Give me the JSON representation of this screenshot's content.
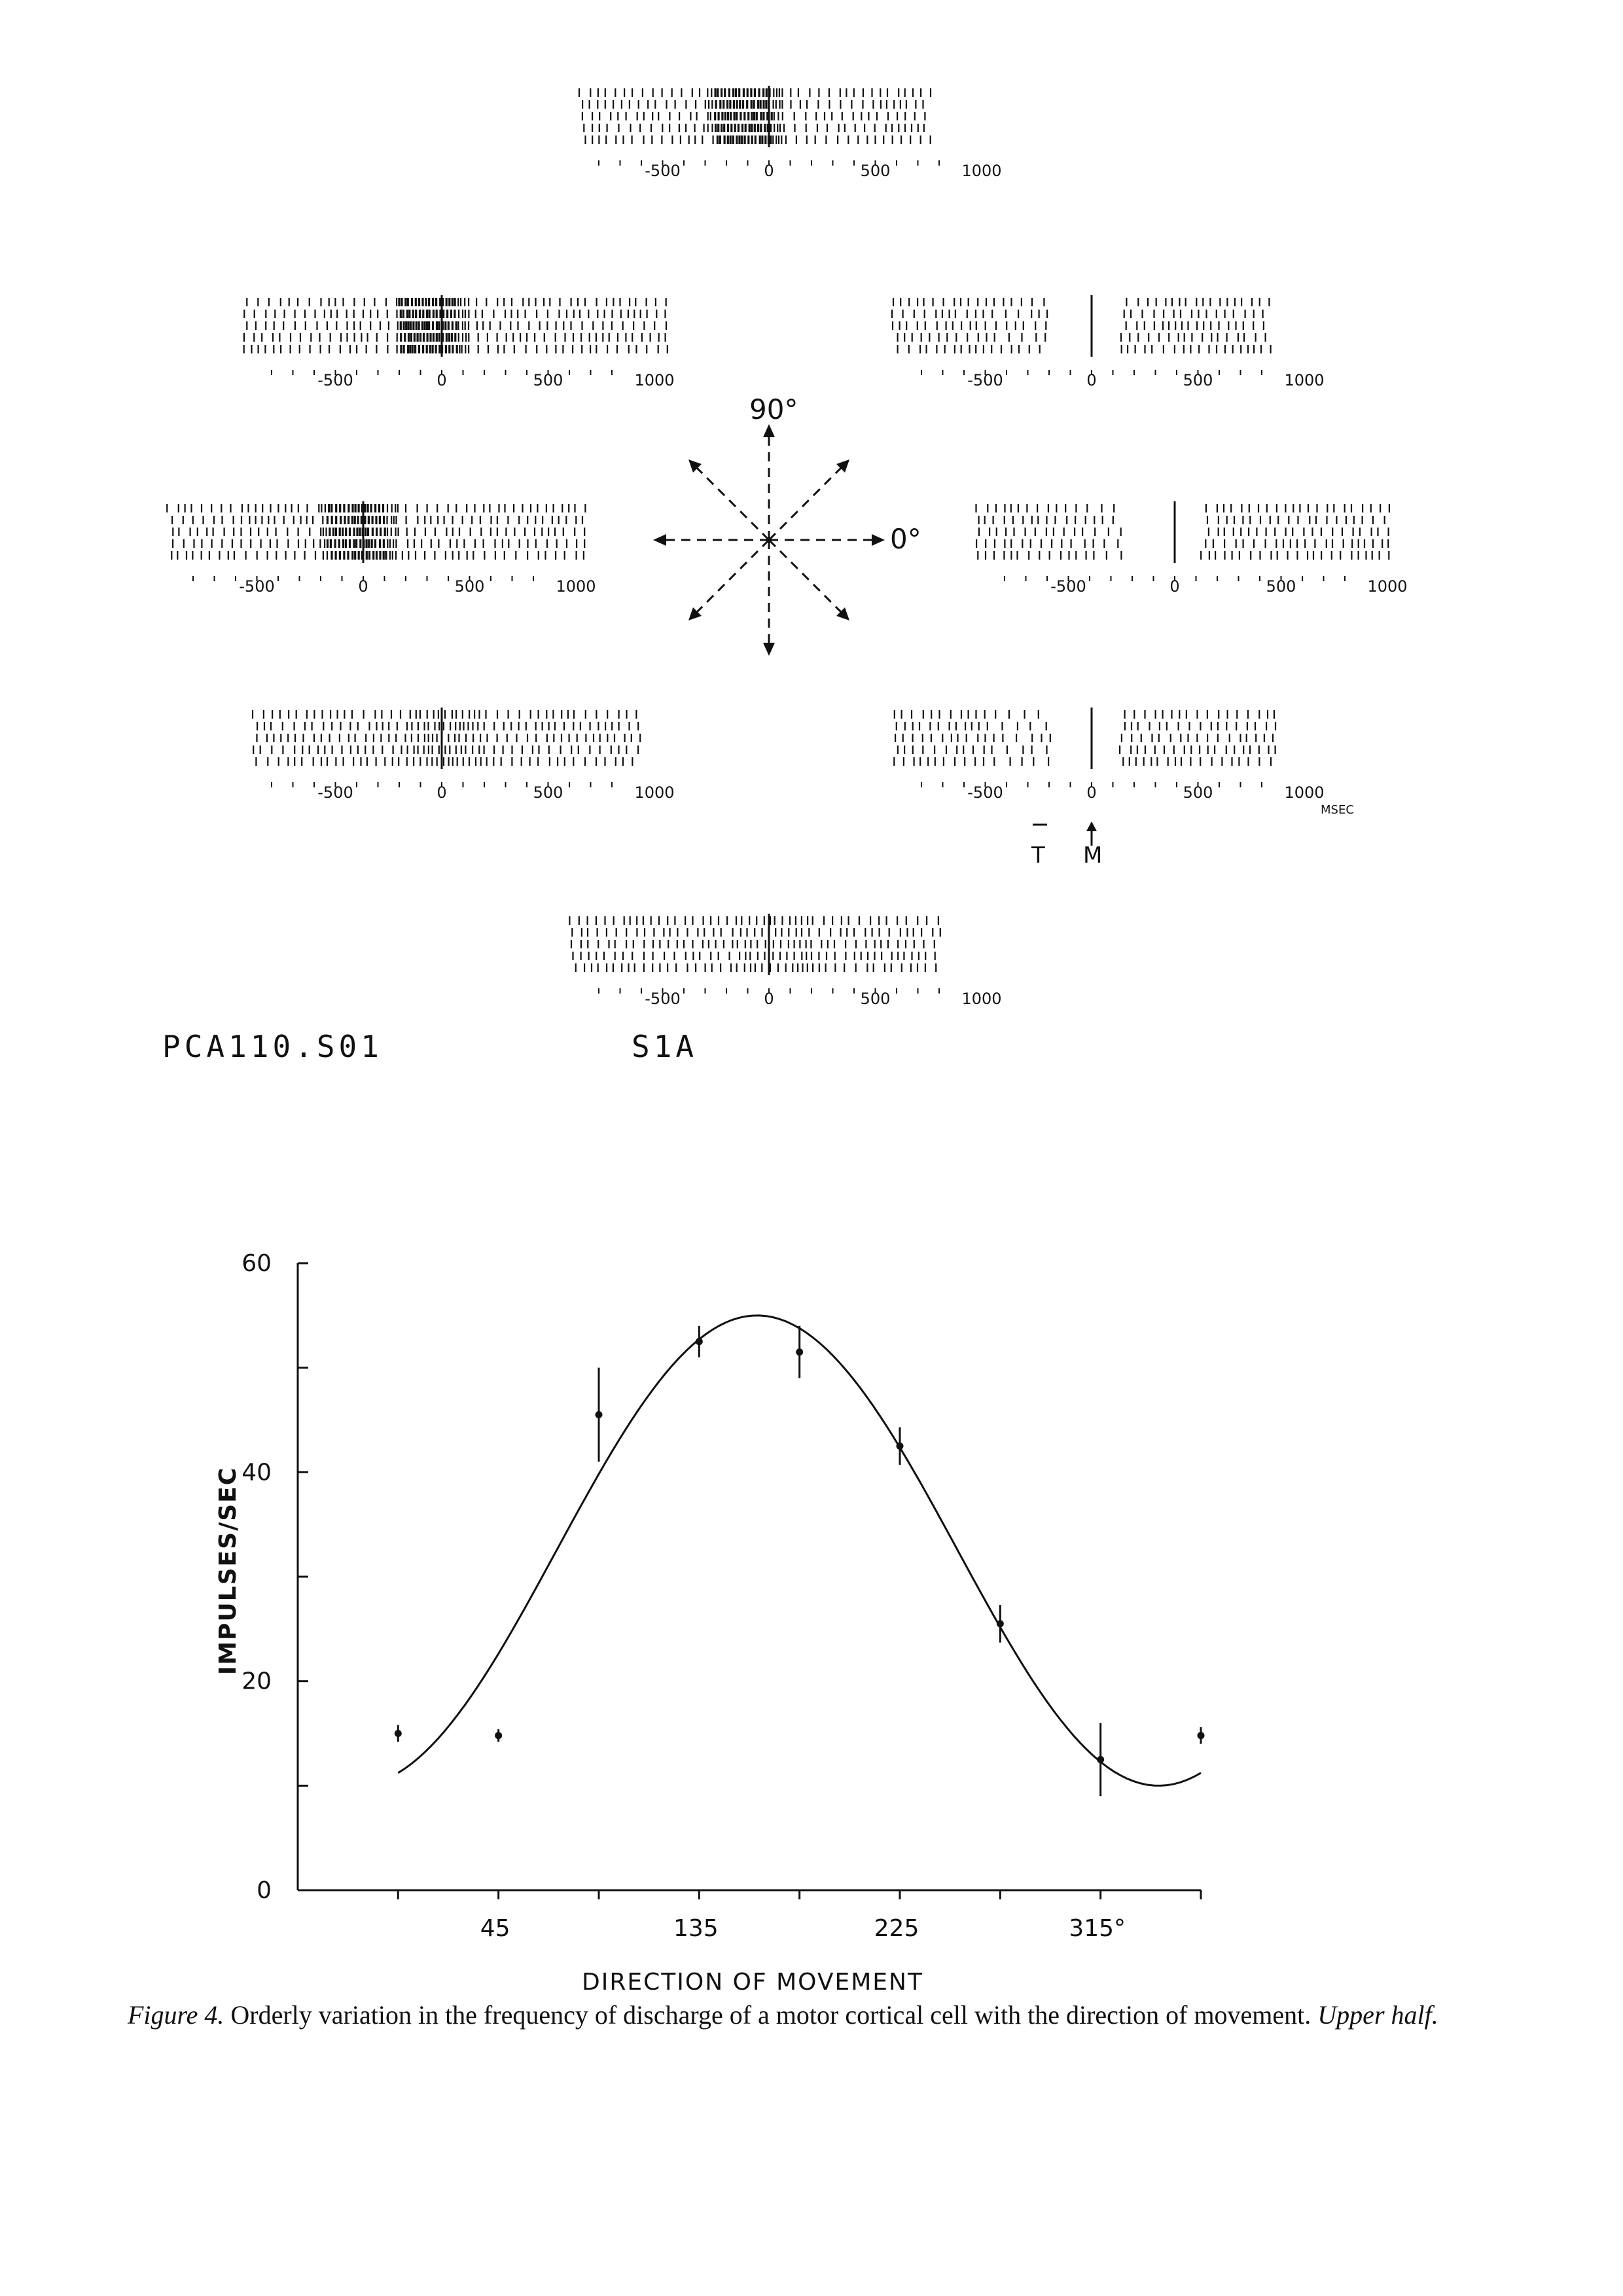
{
  "rasters": {
    "tick_labels": [
      "-500",
      "0",
      "500",
      "1000"
    ],
    "msec_label": "MSEC",
    "marker_labels": [
      "T",
      "M"
    ],
    "direction_labels": [
      "90°",
      "0°"
    ],
    "file_id": "PCA110.S01",
    "cell_id": "S1A"
  },
  "chart_data": {
    "type": "scatter",
    "title": "",
    "xlabel": "DIRECTION OF MOVEMENT",
    "ylabel": "IMPULSES/SEC",
    "ylim": [
      0,
      60
    ],
    "xlim": [
      -45,
      360
    ],
    "x_tick_labels": [
      {
        "value": 45,
        "label": "45"
      },
      {
        "value": 135,
        "label": "135"
      },
      {
        "value": 225,
        "label": "225"
      },
      {
        "value": 315,
        "label": "315°"
      }
    ],
    "y_tick_labels": [
      {
        "value": 0,
        "label": "0"
      },
      {
        "value": 20,
        "label": "20"
      },
      {
        "value": 40,
        "label": "40"
      },
      {
        "value": 60,
        "label": "60"
      }
    ],
    "points": [
      {
        "x": 0,
        "y": 15.0,
        "err": 0.8
      },
      {
        "x": 45,
        "y": 14.8,
        "err": 0.6
      },
      {
        "x": 90,
        "y": 45.5,
        "err": 4.5
      },
      {
        "x": 135,
        "y": 52.5,
        "err": 1.5
      },
      {
        "x": 180,
        "y": 51.5,
        "err": 2.5
      },
      {
        "x": 225,
        "y": 42.5,
        "err": 1.8
      },
      {
        "x": 270,
        "y": 25.5,
        "err": 1.8
      },
      {
        "x": 315,
        "y": 12.5,
        "err": 3.5
      },
      {
        "x": 360,
        "y": 14.8,
        "err": 0.8
      }
    ],
    "fit_curve": {
      "baseline": 32.5,
      "amplitude": 22.5,
      "preferred_direction": 161
    }
  },
  "caption": {
    "prefix": "Figure 4.",
    "text": " Orderly variation in the frequency of discharge of a motor cortical cell with the direction of movement. ",
    "suffix": "Upper half."
  }
}
